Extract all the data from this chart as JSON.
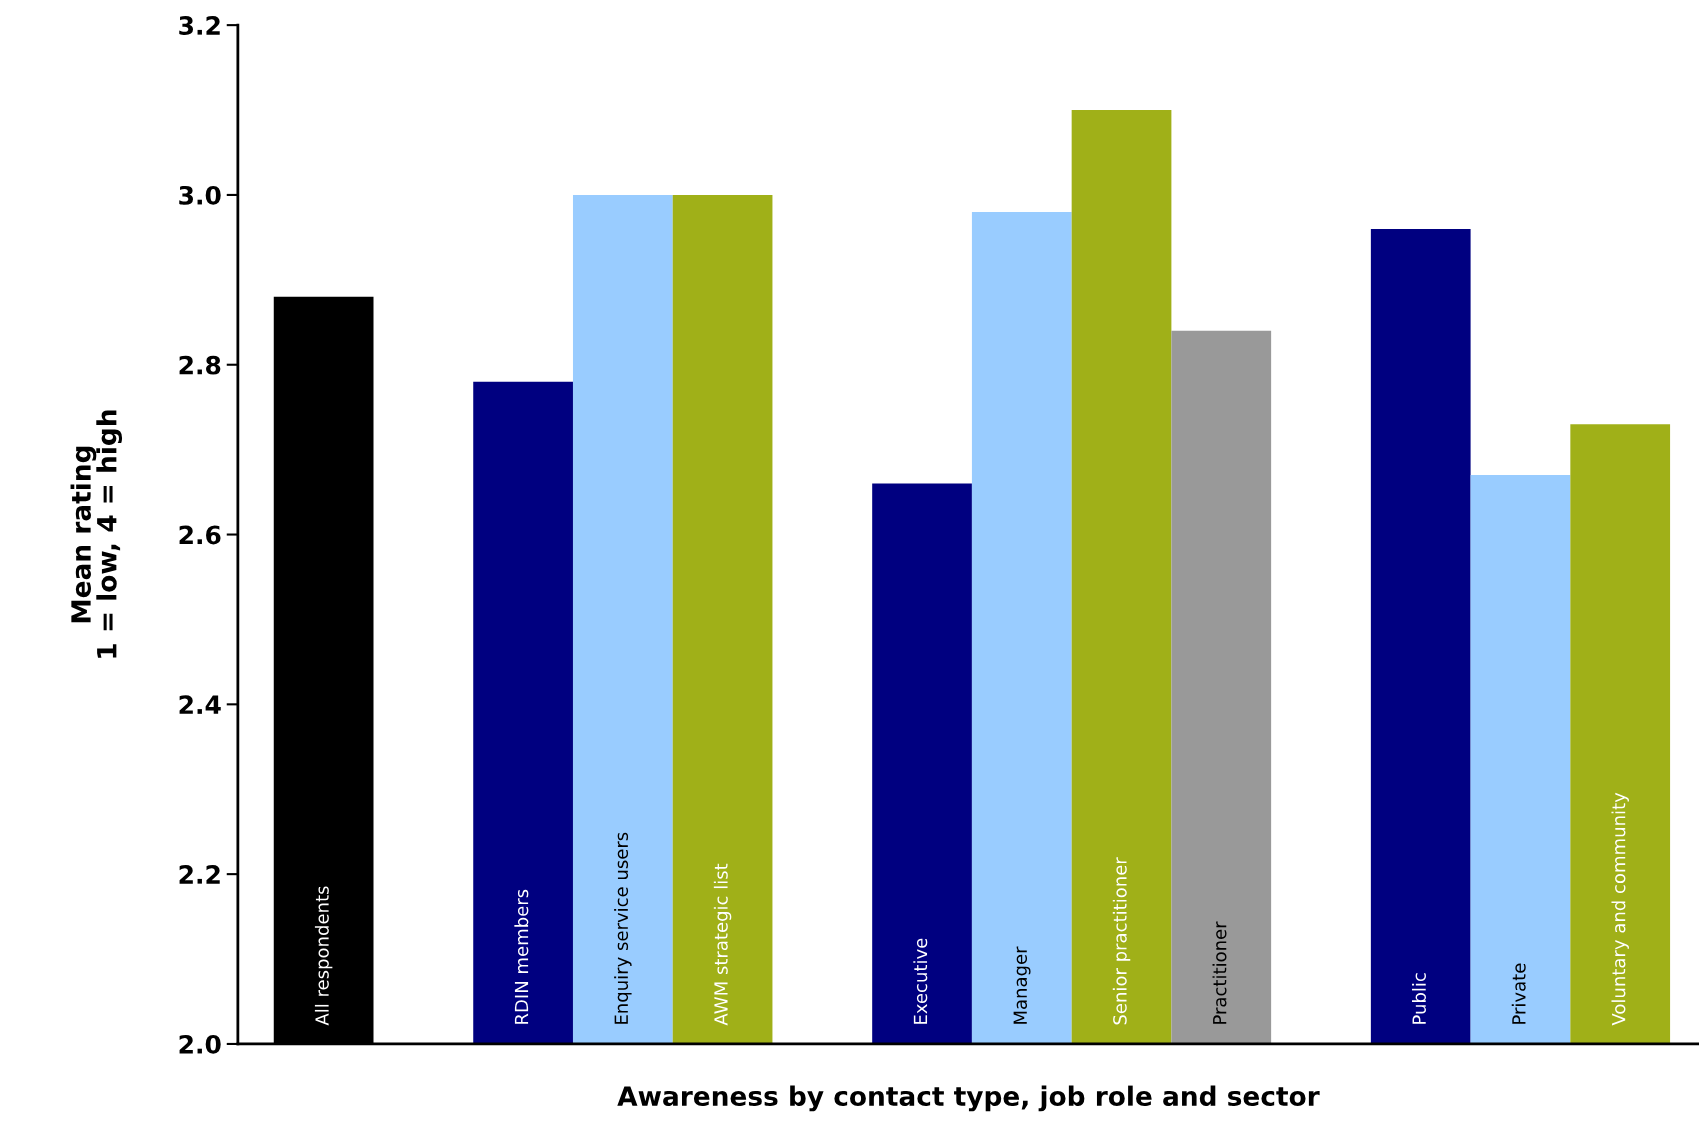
{
  "chart_data": {
    "type": "bar",
    "xlabel": "Awareness by contact type, job role and sector",
    "ylabel": "Mean rating\n1 = low, 4 = high",
    "categories": [
      "All respondents",
      null,
      "RDIN members",
      "Enquiry service users",
      "AWM strategic list",
      null,
      "Executive",
      "Manager",
      "Senior practitioner",
      "Practitioner",
      null,
      "Public",
      "Private",
      "Voluntary and community"
    ],
    "values": [
      2.88,
      null,
      2.78,
      3.0,
      3.0,
      null,
      2.66,
      2.98,
      3.1,
      2.84,
      null,
      2.96,
      2.67,
      2.73
    ],
    "colors": [
      "#000000",
      null,
      "#000080",
      "#99ccff",
      "#a0b018",
      null,
      "#000080",
      "#99ccff",
      "#a0b018",
      "#999999",
      null,
      "#000080",
      "#99ccff",
      "#a0b018"
    ],
    "ylim": [
      2.0,
      3.2
    ],
    "yticks": [
      {
        "value": 2.0,
        "label": "2.0"
      },
      {
        "value": 2.2,
        "label": "2.2"
      },
      {
        "value": 2.4,
        "label": "2.4"
      },
      {
        "value": 2.6,
        "label": "2.6"
      },
      {
        "value": 2.8,
        "label": "2.8"
      },
      {
        "value": 3.0,
        "label": "3.0"
      },
      {
        "value": 3.2,
        "label": "3.2"
      }
    ],
    "grid": false,
    "legend": false
  }
}
